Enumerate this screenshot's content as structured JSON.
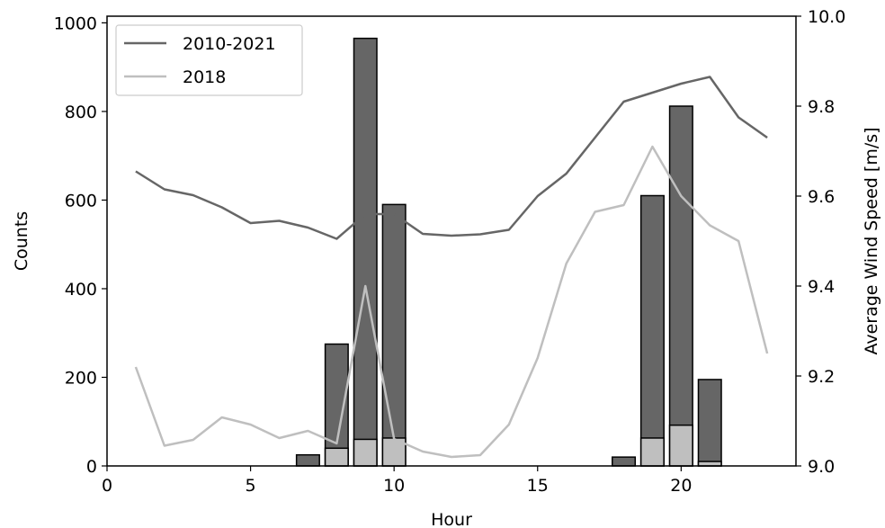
{
  "chart_data": {
    "type": "bar",
    "title": "",
    "xlabel": "Hour",
    "ylabel": "Counts",
    "y2label": "Average Wind Speed [m/s]",
    "xlim": [
      0,
      24
    ],
    "ylim": [
      0,
      1015
    ],
    "y2lim": [
      9.0,
      10.0
    ],
    "xticks": [
      0,
      5,
      10,
      15,
      20
    ],
    "yticks": [
      0,
      200,
      400,
      600,
      800,
      1000
    ],
    "y2ticks": [
      "9.0",
      "9.2",
      "9.4",
      "9.6",
      "9.8",
      "10.0"
    ],
    "grid": false,
    "legend_position": "top-left",
    "bar_series": [
      {
        "name": "",
        "color": "#666666",
        "x": [
          7,
          8,
          9,
          10,
          18,
          19,
          20,
          21
        ],
        "values": [
          25,
          275,
          965,
          590,
          20,
          610,
          812,
          195
        ]
      },
      {
        "name": "",
        "color": "#bfbfbf",
        "x": [
          7,
          8,
          9,
          10,
          18,
          19,
          20,
          21
        ],
        "values": [
          0,
          40,
          60,
          63,
          0,
          63,
          92,
          10
        ]
      }
    ],
    "line_series": [
      {
        "name": "2010-2021",
        "color": "#666666",
        "x": [
          1,
          2,
          3,
          4,
          5,
          6,
          7,
          8,
          9,
          10,
          11,
          12,
          13,
          14,
          15,
          16,
          17,
          18,
          19,
          20,
          21,
          22,
          23
        ],
        "values": [
          9.655,
          9.615,
          9.602,
          9.575,
          9.54,
          9.545,
          9.53,
          9.505,
          9.56,
          9.56,
          9.516,
          9.512,
          9.515,
          9.525,
          9.6,
          9.65,
          9.73,
          9.81,
          9.83,
          9.85,
          9.865,
          9.775,
          9.73
        ]
      },
      {
        "name": "2018",
        "color": "#bfbfbf",
        "x": [
          1,
          2,
          3,
          4,
          5,
          6,
          7,
          8,
          9,
          10,
          11,
          12,
          13,
          14,
          15,
          16,
          17,
          18,
          19,
          20,
          21,
          22,
          23
        ],
        "values": [
          9.22,
          9.045,
          9.058,
          9.108,
          9.092,
          9.062,
          9.078,
          9.05,
          9.4,
          9.06,
          9.032,
          9.02,
          9.024,
          9.092,
          9.24,
          9.45,
          9.565,
          9.58,
          9.71,
          9.6,
          9.535,
          9.5,
          9.25
        ]
      }
    ]
  }
}
